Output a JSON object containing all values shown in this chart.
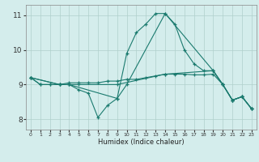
{
  "xlabel": "Humidex (Indice chaleur)",
  "xlim": [
    -0.5,
    23.5
  ],
  "ylim": [
    7.7,
    11.3
  ],
  "yticks": [
    8,
    9,
    10,
    11
  ],
  "xticks": [
    0,
    1,
    2,
    3,
    4,
    5,
    6,
    7,
    8,
    9,
    10,
    11,
    12,
    13,
    14,
    15,
    16,
    17,
    18,
    19,
    20,
    21,
    22,
    23
  ],
  "bg_color": "#d4edec",
  "grid_color": "#b0d0cc",
  "line_color": "#1a7a6e",
  "lines": [
    {
      "x": [
        0,
        1,
        2,
        3,
        4,
        5,
        6,
        7,
        8,
        9,
        10,
        11,
        12,
        13,
        14,
        15,
        16,
        17,
        18,
        19,
        20,
        21,
        22,
        23
      ],
      "y": [
        9.2,
        9.0,
        9.0,
        9.0,
        9.0,
        8.85,
        8.75,
        8.05,
        8.4,
        8.6,
        9.9,
        10.5,
        10.75,
        11.05,
        11.05,
        10.75,
        10.0,
        9.6,
        9.4,
        9.4,
        9.0,
        8.55,
        8.65,
        8.3
      ]
    },
    {
      "x": [
        0,
        1,
        2,
        3,
        4,
        5,
        6,
        7,
        8,
        9,
        10,
        11,
        12,
        13,
        14,
        15,
        16,
        17,
        18,
        19,
        20,
        21,
        22,
        23
      ],
      "y": [
        9.2,
        9.0,
        9.0,
        9.0,
        9.05,
        9.05,
        9.05,
        9.05,
        9.1,
        9.1,
        9.15,
        9.15,
        9.2,
        9.25,
        9.3,
        9.3,
        9.3,
        9.28,
        9.28,
        9.3,
        9.0,
        8.55,
        8.65,
        8.3
      ]
    },
    {
      "x": [
        0,
        3,
        4,
        5,
        9,
        14,
        19,
        20,
        21,
        22,
        23
      ],
      "y": [
        9.2,
        9.0,
        9.0,
        9.0,
        9.0,
        9.3,
        9.4,
        9.0,
        8.55,
        8.65,
        8.3
      ]
    },
    {
      "x": [
        0,
        3,
        4,
        9,
        10,
        14,
        19,
        20,
        21,
        22,
        23
      ],
      "y": [
        9.2,
        9.0,
        9.0,
        8.6,
        9.0,
        11.05,
        9.4,
        9.0,
        8.55,
        8.65,
        8.3
      ]
    }
  ]
}
